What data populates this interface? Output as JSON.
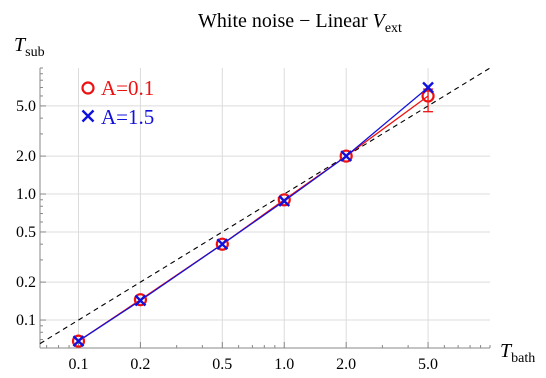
{
  "chart_data": {
    "type": "line",
    "title": {
      "main": "White noise − Linear ",
      "var": "V",
      "sub": "ext"
    },
    "xlabel": {
      "main": "T",
      "sub": "bath"
    },
    "ylabel": {
      "main": "T",
      "sub": "sub"
    },
    "x_scale": "log",
    "y_scale": "log",
    "xlim": [
      0.065,
      10
    ],
    "ylim": [
      0.06,
      10
    ],
    "x_ticks": [
      0.1,
      0.2,
      0.5,
      1.0,
      2.0,
      5.0
    ],
    "x_tick_labels": [
      "0.1",
      "0.2",
      "0.5",
      "1.0",
      "2.0",
      "5.0"
    ],
    "y_ticks": [
      0.1,
      0.2,
      0.5,
      1.0,
      2.0,
      5.0
    ],
    "y_tick_labels": [
      "0.1",
      "0.2",
      "0.5",
      "1.0",
      "2.0",
      "5.0"
    ],
    "grid": true,
    "legend_position": "top-left",
    "reference_line": {
      "style": "dashed",
      "color": "#000000",
      "relation": "y = x"
    },
    "x": [
      0.1,
      0.2,
      0.5,
      1.0,
      2.0,
      5.0
    ],
    "series": [
      {
        "name": "A=0.1",
        "marker": "circle",
        "color": "#ee1111",
        "values": [
          0.068,
          0.145,
          0.4,
          0.9,
          2.0,
          6.0
        ],
        "error_bars": [
          null,
          null,
          null,
          null,
          null,
          {
            "low": 4.5,
            "high": 6.8
          }
        ]
      },
      {
        "name": "A=1.5",
        "marker": "x",
        "color": "#1111dd",
        "values": [
          0.068,
          0.143,
          0.4,
          0.88,
          2.0,
          7.0
        ]
      }
    ]
  }
}
